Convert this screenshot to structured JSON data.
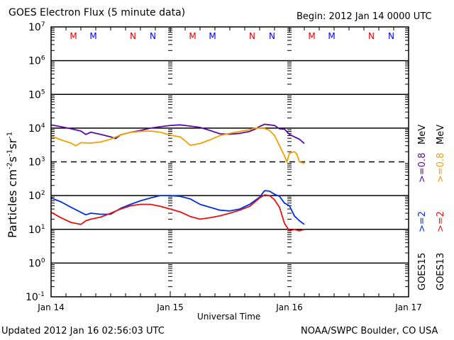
{
  "chart_data": {
    "type": "line",
    "title": "GOES Electron Flux (5 minute data)",
    "begin_label": "Begin: 2012 Jan 14 0000 UTC",
    "xlabel": "Universal Time",
    "ylabel": "Particles cm-2s-1sr-1",
    "ylabel_parts": {
      "main": "Particles cm",
      "e1": "-2",
      "s": "s",
      "e2": "-1",
      "sr": "sr",
      "e3": "-1"
    },
    "yscale": "log",
    "ylim_exp": [
      -1,
      7
    ],
    "y_ticks": [
      {
        "base": "10",
        "exp": "7",
        "value": 7
      },
      {
        "base": "10",
        "exp": "6",
        "value": 6
      },
      {
        "base": "10",
        "exp": "5",
        "value": 5
      },
      {
        "base": "10",
        "exp": "4",
        "value": 4
      },
      {
        "base": "10",
        "exp": "3",
        "value": 3
      },
      {
        "base": "10",
        "exp": "2",
        "value": 2
      },
      {
        "base": "10",
        "exp": "1",
        "value": 1
      },
      {
        "base": "10",
        "exp": "0",
        "value": 0
      },
      {
        "base": "10",
        "exp": "-1",
        "value": -1
      }
    ],
    "xlim_hours": [
      0,
      72
    ],
    "x_ticks": [
      {
        "label": "Jan 14",
        "hour": 0
      },
      {
        "label": "Jan 15",
        "hour": 24
      },
      {
        "label": "Jan 16",
        "hour": 48
      },
      {
        "label": "Jan 17",
        "hour": 72
      }
    ],
    "gridlines_log": [
      6,
      5,
      4,
      2,
      1,
      0
    ],
    "dashed_gridline_log": 3,
    "local_time_markers": [
      {
        "label": "M",
        "hour": 4.5,
        "color": "#e00000"
      },
      {
        "label": "M",
        "hour": 8.5,
        "color": "#0000e0"
      },
      {
        "label": "N",
        "hour": 16.5,
        "color": "#e00000"
      },
      {
        "label": "N",
        "hour": 20.5,
        "color": "#0000e0"
      },
      {
        "label": "M",
        "hour": 28.5,
        "color": "#e00000"
      },
      {
        "label": "M",
        "hour": 32.5,
        "color": "#0000e0"
      },
      {
        "label": "N",
        "hour": 40.5,
        "color": "#e00000"
      },
      {
        "label": "N",
        "hour": 44.5,
        "color": "#0000e0"
      },
      {
        "label": "M",
        "hour": 52.5,
        "color": "#e00000"
      },
      {
        "label": "M",
        "hour": 56.5,
        "color": "#0000e0"
      },
      {
        "label": "N",
        "hour": 64.5,
        "color": "#e00000"
      },
      {
        "label": "N",
        "hour": 68.5,
        "color": "#0000e0"
      }
    ],
    "series": [
      {
        "name": "GOES15 >=0.8 MeV",
        "color": "#5a0aa8",
        "hours": [
          0,
          2,
          4,
          6,
          7,
          8,
          10,
          12,
          13,
          14,
          16,
          18,
          20,
          22,
          24,
          26,
          28,
          30,
          32,
          34,
          36,
          38,
          40,
          41,
          42,
          43,
          44,
          45,
          46,
          47,
          48,
          49,
          50,
          51
        ],
        "values": [
          12500,
          11000,
          9600,
          8200,
          6500,
          7600,
          6500,
          5500,
          4900,
          6300,
          7500,
          8500,
          10000,
          11000,
          12000,
          12500,
          11500,
          10500,
          8500,
          6800,
          6600,
          7000,
          8000,
          9200,
          11200,
          13000,
          12500,
          12000,
          9500,
          9300,
          6500,
          5500,
          4700,
          3500
        ]
      },
      {
        "name": "GOES13 >=0.8 MeV",
        "color": "#f0a000",
        "hours": [
          0,
          2,
          4,
          5,
          6,
          8,
          10,
          12,
          14,
          16,
          18,
          20,
          22,
          24,
          26,
          27,
          28,
          30,
          32,
          34,
          36,
          38,
          40,
          41,
          42,
          43,
          44,
          45,
          46,
          47,
          47.5,
          48,
          49,
          49.5,
          50,
          51
        ],
        "values": [
          5800,
          4500,
          3600,
          3000,
          3700,
          3600,
          3900,
          4700,
          6300,
          7500,
          8000,
          8200,
          7600,
          6200,
          5500,
          4200,
          3100,
          3500,
          4500,
          6000,
          7000,
          8000,
          9000,
          10000,
          10000,
          9800,
          8500,
          6000,
          3000,
          1500,
          1000,
          1800,
          2000,
          1700,
          1000,
          900
        ]
      },
      {
        "name": "GOES15 >=2 MeV",
        "color": "#0030e0",
        "hours": [
          0,
          2,
          4,
          6,
          7,
          8,
          10,
          12,
          14,
          16,
          18,
          20,
          22,
          24,
          26,
          28,
          30,
          32,
          34,
          36,
          38,
          40,
          42,
          43,
          44,
          45,
          46,
          47,
          48,
          49,
          50,
          51
        ],
        "values": [
          85,
          65,
          45,
          32,
          27,
          30,
          28,
          28,
          42,
          55,
          70,
          85,
          100,
          100,
          95,
          80,
          55,
          45,
          37,
          35,
          40,
          55,
          90,
          140,
          135,
          110,
          95,
          60,
          50,
          25,
          18,
          14
        ]
      },
      {
        "name": "GOES13 >=2 MeV",
        "color": "#e81010",
        "hours": [
          0,
          2,
          4,
          6,
          7,
          8,
          10,
          12,
          14,
          16,
          18,
          20,
          22,
          24,
          26,
          28,
          30,
          32,
          34,
          36,
          38,
          40,
          42,
          43,
          44,
          45,
          46,
          47,
          48,
          49,
          50,
          51
        ],
        "values": [
          32,
          22,
          16,
          14,
          18,
          20,
          23,
          30,
          40,
          50,
          55,
          55,
          48,
          40,
          33,
          24,
          20,
          22,
          25,
          30,
          37,
          48,
          85,
          105,
          100,
          75,
          45,
          15,
          9,
          10,
          9,
          10
        ]
      }
    ],
    "legend": [
      {
        "label": "GOES15",
        "color": "#000000"
      },
      {
        "label": "GOES13",
        "color": "#000000"
      },
      {
        "label": ">=2",
        "color": "#0030e0"
      },
      {
        "label": ">=2",
        "color": "#e81010"
      },
      {
        "label": ">=0.8",
        "color": "#5a0aa8"
      },
      {
        "label": ">=0.8",
        "color": "#f0a000"
      },
      {
        "label": "MeV",
        "color": "#000000"
      },
      {
        "label": "MeV",
        "color": "#000000"
      }
    ],
    "legend_position": "right (rotated vertical)"
  },
  "footer": {
    "updated": "Updated 2012 Jan 16 02:56:03 UTC",
    "credit": "NOAA/SWPC Boulder, CO USA"
  }
}
